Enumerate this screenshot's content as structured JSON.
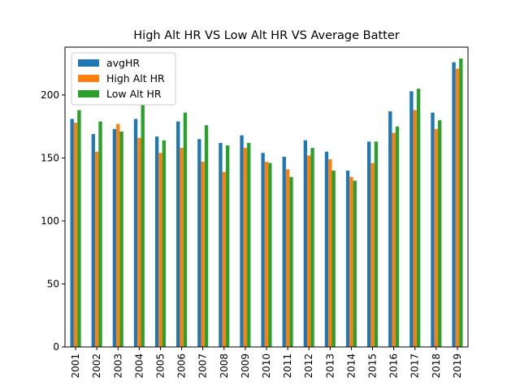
{
  "chart_data": {
    "type": "bar",
    "title": "High Alt HR VS Low Alt HR VS Average Batter",
    "xlabel": "",
    "ylabel": "",
    "categories": [
      "2001",
      "2002",
      "2003",
      "2004",
      "2005",
      "2006",
      "2007",
      "2008",
      "2009",
      "2010",
      "2011",
      "2012",
      "2013",
      "2014",
      "2015",
      "2016",
      "2017",
      "2018",
      "2019"
    ],
    "series": [
      {
        "name": "avgHR",
        "color": "#1f77b4",
        "values": [
          181,
          169,
          173,
          181,
          167,
          179,
          165,
          162,
          168,
          154,
          151,
          164,
          155,
          140,
          163,
          187,
          203,
          186,
          226
        ]
      },
      {
        "name": "High Alt HR",
        "color": "#ff7f0e",
        "values": [
          178,
          155,
          177,
          166,
          154,
          158,
          147,
          139,
          158,
          147,
          141,
          152,
          149,
          135,
          146,
          170,
          188,
          173,
          221
        ]
      },
      {
        "name": "Low Alt HR",
        "color": "#2ca02c",
        "values": [
          188,
          179,
          171,
          192,
          164,
          186,
          176,
          160,
          162,
          146,
          135,
          158,
          140,
          132,
          163,
          175,
          205,
          180,
          229
        ]
      }
    ],
    "ylim": [
      0,
      238
    ],
    "yticks": [
      0,
      50,
      100,
      150,
      200
    ],
    "legend_position": "top-left",
    "grid": false
  }
}
